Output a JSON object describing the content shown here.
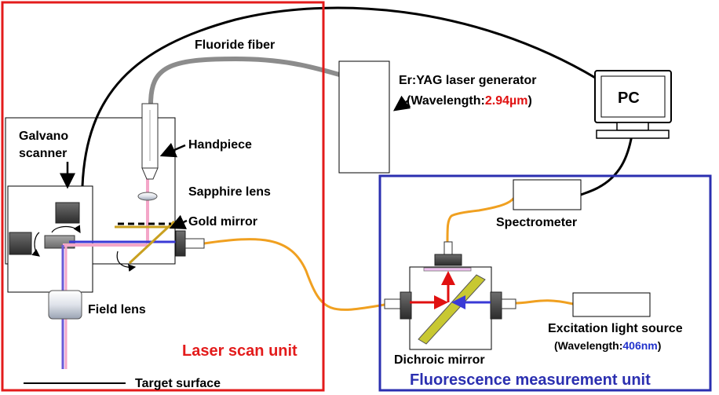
{
  "labels": {
    "fluoride_fiber": "Fluoride fiber",
    "laser_generator": "Er:YAG laser generator",
    "laser_wavelength_prefix": "(Wavelength:",
    "laser_wavelength_value": "2.94µm",
    "laser_wavelength_suffix": ")",
    "pc": "PC",
    "galvano_line1": "Galvano",
    "galvano_line2": "scanner",
    "handpiece": "Handpiece",
    "sapphire_lens": "Sapphire lens",
    "gold_mirror": "Gold mirror",
    "field_lens": "Field lens",
    "laser_scan_unit": "Laser scan unit",
    "target_surface": "Target surface",
    "spectrometer": "Spectrometer",
    "excitation_source": "Excitation light source",
    "excitation_wavelength_prefix": "(Wavelength:",
    "excitation_wavelength_value": "406nm",
    "excitation_wavelength_suffix": ")",
    "dichroic_mirror": "Dichroic mirror",
    "fluorescence_unit": "Fluorescence measurement unit"
  },
  "colors": {
    "laser_scan_frame": "#e31b1b",
    "fluorescence_frame": "#2b2fb0",
    "laser_beam": "#f4a6c8",
    "excitation_beam": "#3a3ad6",
    "fluorescence_beam": "#e01010",
    "fiber_orange": "#f0a020",
    "fiber_gray": "#8c8c8c",
    "gold_mirror": "#c9a020",
    "dichroic_mirror": "#c8c832",
    "wavelength_laser": "#e01010",
    "wavelength_excitation": "#2233cc"
  }
}
